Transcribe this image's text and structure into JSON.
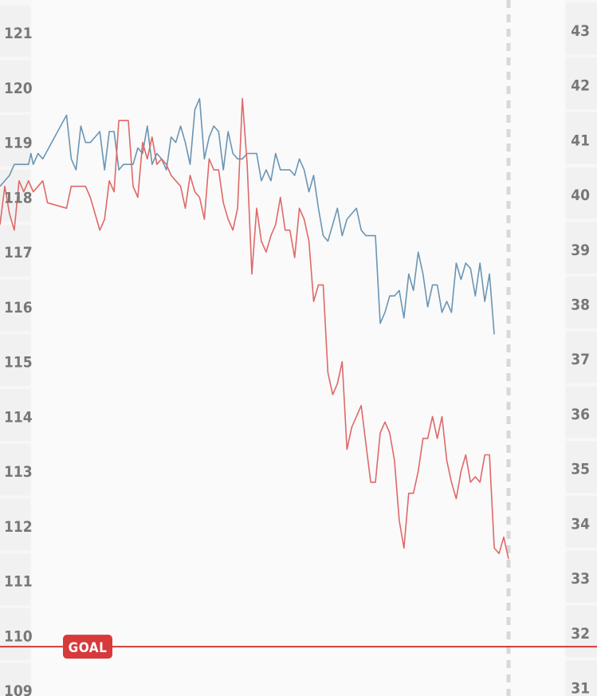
{
  "chart_data": {
    "type": "line",
    "title": "",
    "xlabel": "",
    "y_left": {
      "ticks": [
        121,
        120,
        119,
        118,
        117,
        116,
        115,
        114,
        113,
        112,
        111,
        110,
        109
      ],
      "ylim": [
        108.9,
        121.6
      ]
    },
    "y_right": {
      "ticks": [
        43,
        42,
        41,
        40,
        39,
        38,
        37,
        36,
        35,
        34,
        33,
        32,
        31
      ],
      "ylim": [
        30.85,
        43.55
      ]
    },
    "goal": {
      "label": "GOAL",
      "value": 109.8,
      "axis": "left"
    },
    "grid": false,
    "legend": "none",
    "colors": {
      "blue": "#6a95b5",
      "red": "#e06868",
      "goal": "#d8393b",
      "panel": "#fafafa",
      "gutter": "#f1f1f1",
      "tick": "#777777"
    },
    "series": [
      {
        "axis": "left",
        "color": "#6a95b5",
        "values": [
          [
            0,
            118.2
          ],
          [
            2,
            118.4
          ],
          [
            3,
            118.6
          ],
          [
            4,
            118.6
          ],
          [
            5,
            118.6
          ],
          [
            6,
            118.6
          ],
          [
            6.5,
            118.8
          ],
          [
            7,
            118.6
          ],
          [
            8,
            118.8
          ],
          [
            9,
            118.7
          ],
          [
            14,
            119.5
          ],
          [
            15,
            118.7
          ],
          [
            16,
            118.5
          ],
          [
            17,
            119.3
          ],
          [
            18,
            119.0
          ],
          [
            19,
            119.0
          ],
          [
            20,
            119.1
          ],
          [
            21,
            119.2
          ],
          [
            22,
            118.5
          ],
          [
            23,
            119.2
          ],
          [
            24,
            119.2
          ],
          [
            25,
            118.5
          ],
          [
            26,
            118.6
          ],
          [
            27,
            118.6
          ],
          [
            28,
            118.6
          ],
          [
            29,
            118.9
          ],
          [
            30,
            118.8
          ],
          [
            31,
            119.3
          ],
          [
            32,
            118.6
          ],
          [
            33,
            118.8
          ],
          [
            34,
            118.7
          ],
          [
            35,
            118.5
          ],
          [
            36,
            119.1
          ],
          [
            37,
            119.0
          ],
          [
            38,
            119.3
          ],
          [
            39,
            119.0
          ],
          [
            40,
            118.6
          ],
          [
            41,
            119.6
          ],
          [
            42,
            119.8
          ],
          [
            43,
            118.7
          ],
          [
            44,
            119.1
          ],
          [
            45,
            119.3
          ],
          [
            46,
            119.2
          ],
          [
            47,
            118.5
          ],
          [
            48,
            119.2
          ],
          [
            49,
            118.8
          ],
          [
            50,
            118.7
          ],
          [
            51,
            118.7
          ],
          [
            52,
            118.8
          ],
          [
            53,
            118.8
          ],
          [
            54,
            118.8
          ],
          [
            55,
            118.3
          ],
          [
            56,
            118.5
          ],
          [
            57,
            118.3
          ],
          [
            58,
            118.8
          ],
          [
            59,
            118.5
          ],
          [
            60,
            118.5
          ],
          [
            61,
            118.5
          ],
          [
            62,
            118.4
          ],
          [
            63,
            118.7
          ],
          [
            64,
            118.5
          ],
          [
            65,
            118.1
          ],
          [
            66,
            118.4
          ],
          [
            67,
            117.8
          ],
          [
            68,
            117.3
          ],
          [
            69,
            117.2
          ],
          [
            70,
            117.5
          ],
          [
            71,
            117.8
          ],
          [
            72,
            117.3
          ],
          [
            73,
            117.6
          ],
          [
            74,
            117.7
          ],
          [
            75,
            117.8
          ],
          [
            76,
            117.4
          ],
          [
            77,
            117.3
          ],
          [
            78,
            117.3
          ],
          [
            79,
            117.3
          ],
          [
            80,
            115.7
          ],
          [
            81,
            115.9
          ],
          [
            82,
            116.2
          ],
          [
            83,
            116.2
          ],
          [
            84,
            116.3
          ],
          [
            85,
            115.8
          ],
          [
            86,
            116.6
          ],
          [
            87,
            116.3
          ],
          [
            88,
            117.0
          ],
          [
            89,
            116.6
          ],
          [
            90,
            116.0
          ],
          [
            91,
            116.4
          ],
          [
            92,
            116.4
          ],
          [
            93,
            115.9
          ],
          [
            94,
            116.1
          ],
          [
            95,
            115.9
          ],
          [
            96,
            116.8
          ],
          [
            97,
            116.5
          ],
          [
            98,
            116.8
          ],
          [
            99,
            116.7
          ],
          [
            100,
            116.2
          ],
          [
            101,
            116.8
          ],
          [
            102,
            116.1
          ],
          [
            103,
            116.6
          ],
          [
            104,
            115.5
          ]
        ]
      },
      {
        "axis": "left",
        "color": "#e06868",
        "values": [
          [
            0,
            117.5
          ],
          [
            1,
            118.2
          ],
          [
            2,
            117.7
          ],
          [
            3,
            117.4
          ],
          [
            4,
            118.3
          ],
          [
            5,
            118.1
          ],
          [
            6,
            118.3
          ],
          [
            7,
            118.1
          ],
          [
            8,
            118.2
          ],
          [
            9,
            118.3
          ],
          [
            10,
            117.9
          ],
          [
            14,
            117.8
          ],
          [
            15,
            118.2
          ],
          [
            16,
            118.2
          ],
          [
            17,
            118.2
          ],
          [
            18,
            118.2
          ],
          [
            19,
            118.0
          ],
          [
            20,
            117.7
          ],
          [
            21,
            117.4
          ],
          [
            22,
            117.6
          ],
          [
            23,
            118.3
          ],
          [
            24,
            118.1
          ],
          [
            25,
            119.4
          ],
          [
            26,
            119.4
          ],
          [
            27,
            119.4
          ],
          [
            28,
            118.2
          ],
          [
            29,
            118.0
          ],
          [
            30,
            119.0
          ],
          [
            31,
            118.7
          ],
          [
            32,
            119.1
          ],
          [
            33,
            118.6
          ],
          [
            34,
            118.7
          ],
          [
            35,
            118.6
          ],
          [
            36,
            118.4
          ],
          [
            37,
            118.3
          ],
          [
            38,
            118.2
          ],
          [
            39,
            117.8
          ],
          [
            40,
            118.4
          ],
          [
            41,
            118.1
          ],
          [
            42,
            118.0
          ],
          [
            43,
            117.6
          ],
          [
            44,
            118.7
          ],
          [
            45,
            118.5
          ],
          [
            46,
            118.5
          ],
          [
            47,
            117.9
          ],
          [
            48,
            117.6
          ],
          [
            49,
            117.4
          ],
          [
            50,
            117.8
          ],
          [
            51,
            119.8
          ],
          [
            52,
            118.6
          ],
          [
            53,
            116.6
          ],
          [
            54,
            117.8
          ],
          [
            55,
            117.2
          ],
          [
            56,
            117.0
          ],
          [
            57,
            117.3
          ],
          [
            58,
            117.5
          ],
          [
            59,
            118.0
          ],
          [
            60,
            117.4
          ],
          [
            61,
            117.4
          ],
          [
            62,
            116.9
          ],
          [
            63,
            117.8
          ],
          [
            64,
            117.6
          ],
          [
            65,
            117.2
          ],
          [
            66,
            116.1
          ],
          [
            67,
            116.4
          ],
          [
            68,
            116.4
          ],
          [
            69,
            114.8
          ],
          [
            70,
            114.4
          ],
          [
            71,
            114.6
          ],
          [
            72,
            115.0
          ],
          [
            73,
            113.4
          ],
          [
            74,
            113.8
          ],
          [
            75,
            114.0
          ],
          [
            76,
            114.2
          ],
          [
            77,
            113.5
          ],
          [
            78,
            112.8
          ],
          [
            79,
            112.8
          ],
          [
            80,
            113.7
          ],
          [
            81,
            113.9
          ],
          [
            82,
            113.7
          ],
          [
            83,
            113.2
          ],
          [
            84,
            112.1
          ],
          [
            85,
            111.6
          ],
          [
            86,
            112.6
          ],
          [
            87,
            112.6
          ],
          [
            88,
            113.0
          ],
          [
            89,
            113.6
          ],
          [
            90,
            113.6
          ],
          [
            91,
            114.0
          ],
          [
            92,
            113.6
          ],
          [
            93,
            114.0
          ],
          [
            94,
            113.2
          ],
          [
            95,
            112.8
          ],
          [
            96,
            112.5
          ],
          [
            97,
            113.0
          ],
          [
            98,
            113.3
          ],
          [
            99,
            112.8
          ],
          [
            100,
            112.9
          ],
          [
            101,
            112.8
          ],
          [
            102,
            113.3
          ],
          [
            103,
            113.3
          ],
          [
            104,
            111.6
          ],
          [
            105,
            111.5
          ],
          [
            106,
            111.8
          ],
          [
            107,
            111.4
          ]
        ]
      }
    ]
  }
}
